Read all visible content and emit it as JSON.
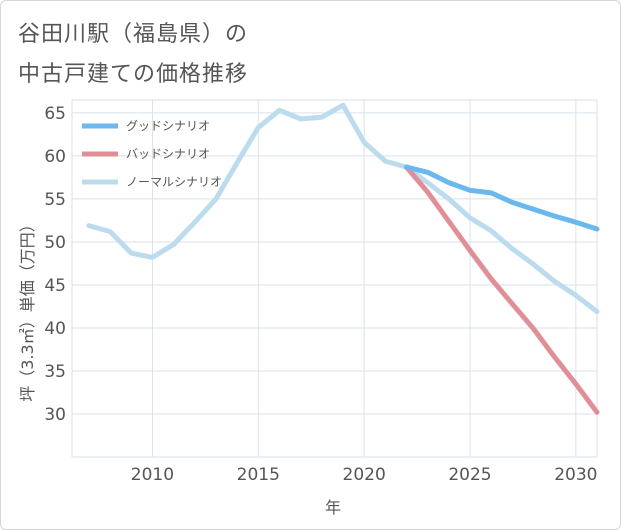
{
  "title_line1": "谷田川駅（福島県）の",
  "title_line2": "中古戸建ての価格推移",
  "chart_data": {
    "type": "line",
    "xlabel": "年",
    "ylabel": "坪（3.3㎡）単価（万円）",
    "xlim": [
      2006.2,
      2031
    ],
    "ylim": [
      25,
      66.5
    ],
    "x_ticks": [
      2010,
      2015,
      2020,
      2025,
      2030
    ],
    "y_ticks": [
      30,
      35,
      40,
      45,
      50,
      55,
      60,
      65
    ],
    "grid": true,
    "legend_position": "top-left",
    "series": [
      {
        "name": "グッドシナリオ",
        "color": "#6bb8ee",
        "x": [
          2022,
          2023,
          2024,
          2025,
          2026,
          2027,
          2028,
          2029,
          2030,
          2031
        ],
        "y": [
          58.7,
          58.1,
          56.9,
          56.0,
          55.7,
          54.6,
          53.8,
          53.0,
          52.3,
          51.5
        ]
      },
      {
        "name": "バッドシナリオ",
        "color": "#e08f97",
        "x": [
          2022,
          2023,
          2024,
          2025,
          2026,
          2027,
          2028,
          2029,
          2030,
          2031
        ],
        "y": [
          58.7,
          55.8,
          52.4,
          49.0,
          45.7,
          42.8,
          39.9,
          36.6,
          33.5,
          30.2
        ]
      },
      {
        "name": "ノーマルシナリオ",
        "color": "#bcdcee",
        "x": [
          2007,
          2008,
          2009,
          2010,
          2011,
          2012,
          2013,
          2014,
          2015,
          2016,
          2017,
          2018,
          2019,
          2020,
          2021,
          2022,
          2023,
          2024,
          2025,
          2026,
          2027,
          2028,
          2029,
          2030,
          2031
        ],
        "y": [
          51.9,
          51.2,
          48.7,
          48.2,
          49.7,
          52.3,
          55.0,
          59.2,
          63.3,
          65.3,
          64.3,
          64.5,
          65.9,
          61.6,
          59.4,
          58.7,
          56.9,
          55.0,
          52.8,
          51.3,
          49.2,
          47.4,
          45.4,
          43.8,
          41.9
        ]
      }
    ]
  }
}
